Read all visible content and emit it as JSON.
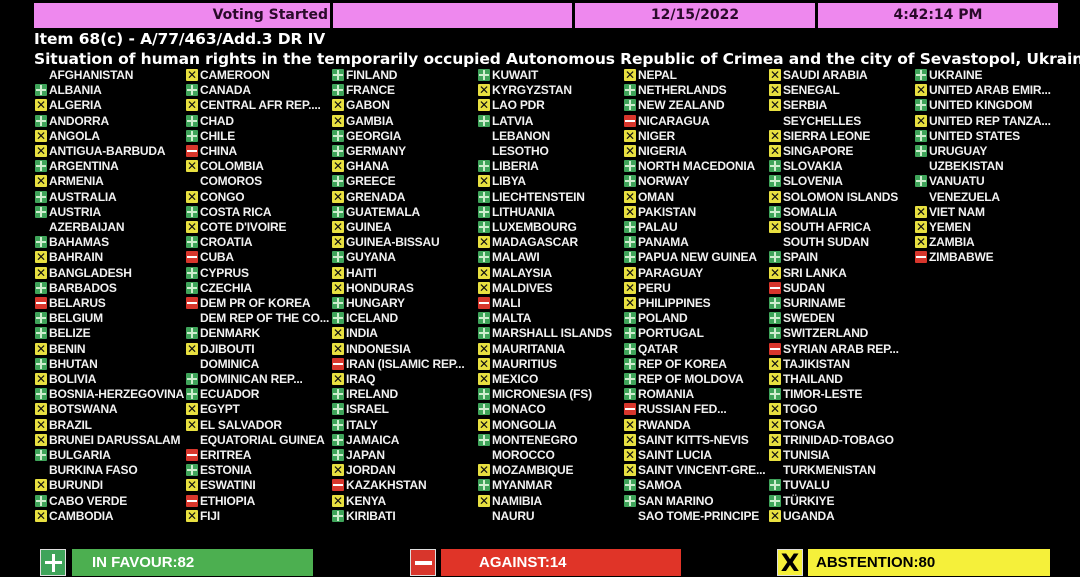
{
  "header": {
    "status": "Voting Started",
    "blank": "",
    "date": "12/15/2022",
    "time": "4:42:14 PM"
  },
  "item": {
    "code": "Item 68(c) - A/77/463/Add.3 DR IV",
    "title": "Situation of human rights in the temporarily occupied Autonomous Republic of Crimea and the city of Sevastopol, Ukraine"
  },
  "colors": {
    "in_favour": "#4caf50",
    "against": "#e03428",
    "abstention": "#f5f03a",
    "header": "#ee88ee"
  },
  "icons": {
    "Y": "plus-icon",
    "N": "minus-icon",
    "A": "x-icon"
  },
  "columns": [
    [
      [
        "AFGHANISTAN",
        ""
      ],
      [
        "ALBANIA",
        "Y"
      ],
      [
        "ALGERIA",
        "A"
      ],
      [
        "ANDORRA",
        "Y"
      ],
      [
        "ANGOLA",
        "A"
      ],
      [
        "ANTIGUA-BARBUDA",
        "A"
      ],
      [
        "ARGENTINA",
        "Y"
      ],
      [
        "ARMENIA",
        "A"
      ],
      [
        "AUSTRALIA",
        "Y"
      ],
      [
        "AUSTRIA",
        "Y"
      ],
      [
        "AZERBAIJAN",
        ""
      ],
      [
        "BAHAMAS",
        "Y"
      ],
      [
        "BAHRAIN",
        "A"
      ],
      [
        "BANGLADESH",
        "A"
      ],
      [
        "BARBADOS",
        "Y"
      ],
      [
        "BELARUS",
        "N"
      ],
      [
        "BELGIUM",
        "Y"
      ],
      [
        "BELIZE",
        "Y"
      ],
      [
        "BENIN",
        "A"
      ],
      [
        "BHUTAN",
        "Y"
      ],
      [
        "BOLIVIA",
        "A"
      ],
      [
        "BOSNIA-HERZEGOVINA",
        "Y"
      ],
      [
        "BOTSWANA",
        "A"
      ],
      [
        "BRAZIL",
        "A"
      ],
      [
        "BRUNEI DARUSSALAM",
        "A"
      ],
      [
        "BULGARIA",
        "Y"
      ],
      [
        "BURKINA FASO",
        ""
      ],
      [
        "BURUNDI",
        "A"
      ],
      [
        "CABO VERDE",
        "Y"
      ],
      [
        "CAMBODIA",
        "A"
      ]
    ],
    [
      [
        "CAMEROON",
        "A"
      ],
      [
        "CANADA",
        "Y"
      ],
      [
        "CENTRAL AFR REP....",
        "A"
      ],
      [
        "CHAD",
        "Y"
      ],
      [
        "CHILE",
        "Y"
      ],
      [
        "CHINA",
        "N"
      ],
      [
        "COLOMBIA",
        "A"
      ],
      [
        "COMOROS",
        ""
      ],
      [
        "CONGO",
        "A"
      ],
      [
        "COSTA RICA",
        "Y"
      ],
      [
        "COTE D'IVOIRE",
        "A"
      ],
      [
        "CROATIA",
        "Y"
      ],
      [
        "CUBA",
        "N"
      ],
      [
        "CYPRUS",
        "Y"
      ],
      [
        "CZECHIA",
        "Y"
      ],
      [
        "DEM PR OF KOREA",
        "N"
      ],
      [
        "DEM REP OF THE CO...",
        ""
      ],
      [
        "DENMARK",
        "Y"
      ],
      [
        "DJIBOUTI",
        "A"
      ],
      [
        "DOMINICA",
        ""
      ],
      [
        "DOMINICAN REP...",
        "Y"
      ],
      [
        "ECUADOR",
        "Y"
      ],
      [
        "EGYPT",
        "A"
      ],
      [
        "EL SALVADOR",
        "A"
      ],
      [
        "EQUATORIAL GUINEA",
        ""
      ],
      [
        "ERITREA",
        "N"
      ],
      [
        "ESTONIA",
        "Y"
      ],
      [
        "ESWATINI",
        "A"
      ],
      [
        "ETHIOPIA",
        "N"
      ],
      [
        "FIJI",
        "A"
      ]
    ],
    [
      [
        "FINLAND",
        "Y"
      ],
      [
        "FRANCE",
        "Y"
      ],
      [
        "GABON",
        "A"
      ],
      [
        "GAMBIA",
        "A"
      ],
      [
        "GEORGIA",
        "Y"
      ],
      [
        "GERMANY",
        "Y"
      ],
      [
        "GHANA",
        "A"
      ],
      [
        "GREECE",
        "Y"
      ],
      [
        "GRENADA",
        "A"
      ],
      [
        "GUATEMALA",
        "Y"
      ],
      [
        "GUINEA",
        "A"
      ],
      [
        "GUINEA-BISSAU",
        "A"
      ],
      [
        "GUYANA",
        "Y"
      ],
      [
        "HAITI",
        "A"
      ],
      [
        "HONDURAS",
        "A"
      ],
      [
        "HUNGARY",
        "Y"
      ],
      [
        "ICELAND",
        "Y"
      ],
      [
        "INDIA",
        "A"
      ],
      [
        "INDONESIA",
        "A"
      ],
      [
        "IRAN (ISLAMIC REP...",
        "N"
      ],
      [
        "IRAQ",
        "A"
      ],
      [
        "IRELAND",
        "Y"
      ],
      [
        "ISRAEL",
        "Y"
      ],
      [
        "ITALY",
        "Y"
      ],
      [
        "JAMAICA",
        "Y"
      ],
      [
        "JAPAN",
        "Y"
      ],
      [
        "JORDAN",
        "A"
      ],
      [
        "KAZAKHSTAN",
        "N"
      ],
      [
        "KENYA",
        "A"
      ],
      [
        "KIRIBATI",
        "Y"
      ]
    ],
    [
      [
        "KUWAIT",
        "Y"
      ],
      [
        "KYRGYZSTAN",
        "A"
      ],
      [
        "LAO PDR",
        "A"
      ],
      [
        "LATVIA",
        "Y"
      ],
      [
        "LEBANON",
        ""
      ],
      [
        "LESOTHO",
        ""
      ],
      [
        "LIBERIA",
        "Y"
      ],
      [
        "LIBYA",
        "A"
      ],
      [
        "LIECHTENSTEIN",
        "Y"
      ],
      [
        "LITHUANIA",
        "Y"
      ],
      [
        "LUXEMBOURG",
        "Y"
      ],
      [
        "MADAGASCAR",
        "A"
      ],
      [
        "MALAWI",
        "Y"
      ],
      [
        "MALAYSIA",
        "A"
      ],
      [
        "MALDIVES",
        "A"
      ],
      [
        "MALI",
        "N"
      ],
      [
        "MALTA",
        "Y"
      ],
      [
        "MARSHALL ISLANDS",
        "Y"
      ],
      [
        "MAURITANIA",
        "A"
      ],
      [
        "MAURITIUS",
        "A"
      ],
      [
        "MEXICO",
        "A"
      ],
      [
        "MICRONESIA (FS)",
        "Y"
      ],
      [
        "MONACO",
        "Y"
      ],
      [
        "MONGOLIA",
        "A"
      ],
      [
        "MONTENEGRO",
        "Y"
      ],
      [
        "MOROCCO",
        ""
      ],
      [
        "MOZAMBIQUE",
        "A"
      ],
      [
        "MYANMAR",
        "Y"
      ],
      [
        "NAMIBIA",
        "A"
      ],
      [
        "NAURU",
        ""
      ]
    ],
    [
      [
        "NEPAL",
        "A"
      ],
      [
        "NETHERLANDS",
        "Y"
      ],
      [
        "NEW ZEALAND",
        "Y"
      ],
      [
        "NICARAGUA",
        "N"
      ],
      [
        "NIGER",
        "A"
      ],
      [
        "NIGERIA",
        "A"
      ],
      [
        "NORTH MACEDONIA",
        "Y"
      ],
      [
        "NORWAY",
        "Y"
      ],
      [
        "OMAN",
        "A"
      ],
      [
        "PAKISTAN",
        "A"
      ],
      [
        "PALAU",
        "Y"
      ],
      [
        "PANAMA",
        "Y"
      ],
      [
        "PAPUA NEW GUINEA",
        "Y"
      ],
      [
        "PARAGUAY",
        "A"
      ],
      [
        "PERU",
        "A"
      ],
      [
        "PHILIPPINES",
        "A"
      ],
      [
        "POLAND",
        "Y"
      ],
      [
        "PORTUGAL",
        "Y"
      ],
      [
        "QATAR",
        "Y"
      ],
      [
        "REP OF KOREA",
        "Y"
      ],
      [
        "REP OF MOLDOVA",
        "Y"
      ],
      [
        "ROMANIA",
        "Y"
      ],
      [
        "RUSSIAN FED...",
        "N"
      ],
      [
        "RWANDA",
        "A"
      ],
      [
        "SAINT KITTS-NEVIS",
        "A"
      ],
      [
        "SAINT LUCIA",
        "A"
      ],
      [
        "SAINT VINCENT-GRE...",
        "A"
      ],
      [
        "SAMOA",
        "Y"
      ],
      [
        "SAN MARINO",
        "Y"
      ],
      [
        "SAO TOME-PRINCIPE",
        ""
      ]
    ],
    [
      [
        "SAUDI ARABIA",
        "A"
      ],
      [
        "SENEGAL",
        "A"
      ],
      [
        "SERBIA",
        "A"
      ],
      [
        "SEYCHELLES",
        ""
      ],
      [
        "SIERRA LEONE",
        "A"
      ],
      [
        "SINGAPORE",
        "A"
      ],
      [
        "SLOVAKIA",
        "Y"
      ],
      [
        "SLOVENIA",
        "Y"
      ],
      [
        "SOLOMON ISLANDS",
        "A"
      ],
      [
        "SOMALIA",
        "Y"
      ],
      [
        "SOUTH AFRICA",
        "A"
      ],
      [
        "SOUTH SUDAN",
        ""
      ],
      [
        "SPAIN",
        "Y"
      ],
      [
        "SRI LANKA",
        "A"
      ],
      [
        "SUDAN",
        "N"
      ],
      [
        "SURINAME",
        "Y"
      ],
      [
        "SWEDEN",
        "Y"
      ],
      [
        "SWITZERLAND",
        "Y"
      ],
      [
        "SYRIAN ARAB REP...",
        "N"
      ],
      [
        "TAJIKISTAN",
        "A"
      ],
      [
        "THAILAND",
        "A"
      ],
      [
        "TIMOR-LESTE",
        "Y"
      ],
      [
        "TOGO",
        "A"
      ],
      [
        "TONGA",
        "A"
      ],
      [
        "TRINIDAD-TOBAGO",
        "A"
      ],
      [
        "TUNISIA",
        "A"
      ],
      [
        "TURKMENISTAN",
        ""
      ],
      [
        "TUVALU",
        "Y"
      ],
      [
        "TÜRKIYE",
        "Y"
      ],
      [
        "UGANDA",
        "A"
      ]
    ],
    [
      [
        "UKRAINE",
        "Y"
      ],
      [
        "UNITED ARAB EMIR...",
        "A"
      ],
      [
        "UNITED KINGDOM",
        "Y"
      ],
      [
        "UNITED REP TANZA...",
        "A"
      ],
      [
        "UNITED STATES",
        "Y"
      ],
      [
        "URUGUAY",
        "Y"
      ],
      [
        "UZBEKISTAN",
        ""
      ],
      [
        "VANUATU",
        "Y"
      ],
      [
        "VENEZUELA",
        ""
      ],
      [
        "VIET NAM",
        "A"
      ],
      [
        "YEMEN",
        "A"
      ],
      [
        "ZAMBIA",
        "A"
      ],
      [
        "ZIMBABWE",
        "N"
      ]
    ]
  ],
  "totals": {
    "in_favour": "IN FAVOUR:82",
    "against": "AGAINST:14",
    "abstention": "ABSTENTION:80",
    "abstention_icon_glyph": "X"
  }
}
